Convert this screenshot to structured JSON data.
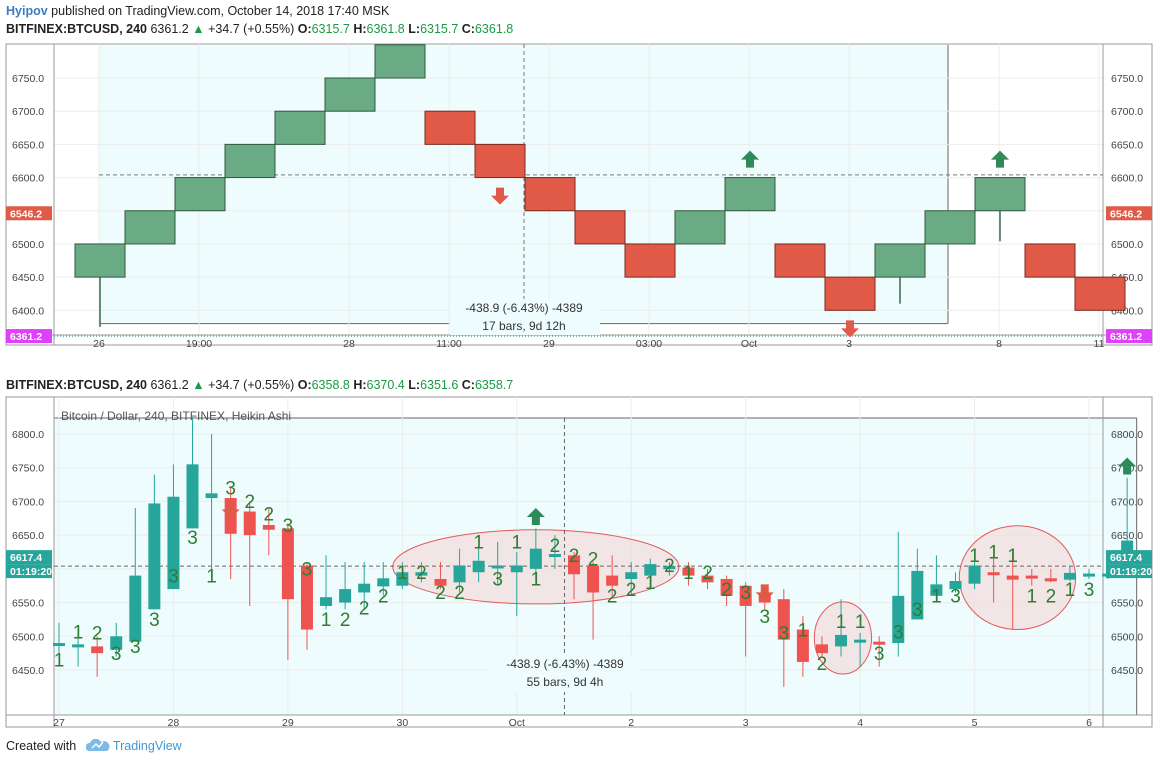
{
  "published": {
    "author": "Hyipov",
    "text": "published on TradingView.com, October 14, 2018 17:40 MSK"
  },
  "top_header": {
    "symbol": "BITFINEX:BTCUSD, 240",
    "last": "6361.2",
    "change": "+34.7 (+0.55%)",
    "o_label": "O:",
    "o": "6315.7",
    "h_label": "H:",
    "h": "6361.8",
    "l_label": "L:",
    "l": "6315.7",
    "c_label": "C:",
    "c": "6361.8"
  },
  "bottom_header": {
    "symbol": "BITFINEX:BTCUSD, 240",
    "last": "6361.2",
    "change": "+34.7 (+0.55%)",
    "o_label": "O:",
    "o": "6358.8",
    "h_label": "H:",
    "h": "6370.4",
    "l_label": "L:",
    "l": "6351.6",
    "c_label": "C:",
    "c": "6358.7"
  },
  "footer": {
    "created_with": "Created with",
    "brand": "TradingView"
  },
  "colors": {
    "up_box": "#6aaa84",
    "down_box": "#e05a47",
    "ha_up": "#26a69a",
    "ha_down": "#ef5350",
    "pink": "#e040fb",
    "ellipse_fill": "#f2dede",
    "ellipse_stroke": "#e05a5a",
    "label_green": "#2e7d32",
    "shade": "#eefcfd"
  },
  "chart_data": [
    {
      "type": "renko",
      "box_size": 50,
      "y_ticks": [
        "6750.0",
        "6700.0",
        "6650.0",
        "6600.0",
        "6550.0",
        "6500.0",
        "6450.0",
        "6400.0"
      ],
      "ylim": [
        6355,
        6815
      ],
      "x_ticks": [
        "26",
        "19:00",
        "28",
        "11:00",
        "29",
        "03:00",
        "Oct",
        "3",
        "8",
        "11"
      ],
      "bricks": [
        {
          "dir": "up",
          "open": 6450,
          "close": 6500,
          "wick": 6375
        },
        {
          "dir": "up",
          "open": 6500,
          "close": 6550
        },
        {
          "dir": "up",
          "open": 6550,
          "close": 6600
        },
        {
          "dir": "up",
          "open": 6600,
          "close": 6650
        },
        {
          "dir": "up",
          "open": 6650,
          "close": 6700
        },
        {
          "dir": "up",
          "open": 6700,
          "close": 6750
        },
        {
          "dir": "up",
          "open": 6750,
          "close": 6800
        },
        {
          "dir": "down",
          "open": 6700,
          "close": 6650
        },
        {
          "dir": "down",
          "open": 6650,
          "close": 6600
        },
        {
          "dir": "down",
          "open": 6600,
          "close": 6550
        },
        {
          "dir": "down",
          "open": 6550,
          "close": 6500
        },
        {
          "dir": "down",
          "open": 6500,
          "close": 6450
        },
        {
          "dir": "up",
          "open": 6500,
          "close": 6550
        },
        {
          "dir": "up",
          "open": 6550,
          "close": 6600
        },
        {
          "dir": "down",
          "open": 6500,
          "close": 6450
        },
        {
          "dir": "down",
          "open": 6450,
          "close": 6400
        },
        {
          "dir": "up",
          "open": 6450,
          "close": 6500,
          "wick": 6410
        },
        {
          "dir": "up",
          "open": 6500,
          "close": 6550
        },
        {
          "dir": "up",
          "open": 6550,
          "close": 6600,
          "wick": 6504
        },
        {
          "dir": "down",
          "open": 6500,
          "close": 6450
        },
        {
          "dir": "down",
          "open": 6450,
          "close": 6400
        }
      ],
      "signals": [
        {
          "dir": "down",
          "brick": 8
        },
        {
          "dir": "up",
          "brick": 13
        },
        {
          "dir": "down",
          "brick": 15
        },
        {
          "dir": "up",
          "brick": 18
        }
      ],
      "range_start_brick": 0,
      "range_end_brick": 17,
      "price_tag": "6546.2",
      "price_tag_value": 6546.2,
      "pink_tag": "6361.2",
      "pink_tag_value": 6361.2,
      "hline_value": 6604,
      "measure": {
        "line1": "-438.9 (-6.43%) -4389",
        "line2": "17 bars, 9d 12h"
      }
    },
    {
      "type": "candlestick",
      "title": "Bitcoin / Dollar, 240, BITFINEX, Heikin Ashi",
      "y_ticks": [
        "6800.0",
        "6750.0",
        "6700.0",
        "6650.0",
        "6600.0",
        "6550.0",
        "6500.0",
        "6450.0"
      ],
      "ylim": [
        6406,
        6827
      ],
      "x_ticks": [
        "27",
        "28",
        "29",
        "30",
        "Oct",
        "2",
        "3",
        "4",
        "5",
        "6"
      ],
      "x_tick_pos": [
        0,
        6,
        12,
        18,
        24,
        30,
        36,
        42,
        48,
        54
      ],
      "candles": [
        {
          "o": 6490,
          "c": 6490,
          "h": 6520,
          "l": 6470
        },
        {
          "o": 6485,
          "c": 6488,
          "h": 6510,
          "l": 6455
        },
        {
          "o": 6485,
          "c": 6475,
          "h": 6500,
          "l": 6440
        },
        {
          "o": 6480,
          "c": 6500,
          "h": 6520,
          "l": 6470
        },
        {
          "o": 6492,
          "c": 6590,
          "h": 6690,
          "l": 6492
        },
        {
          "o": 6540,
          "c": 6697,
          "h": 6740,
          "l": 6540
        },
        {
          "o": 6570,
          "c": 6707,
          "h": 6755,
          "l": 6570
        },
        {
          "o": 6660,
          "c": 6755,
          "h": 6825,
          "l": 6660
        },
        {
          "o": 6705,
          "c": 6712,
          "h": 6800,
          "l": 6600
        },
        {
          "o": 6705,
          "c": 6652,
          "h": 6720,
          "l": 6585
        },
        {
          "o": 6685,
          "c": 6650,
          "h": 6700,
          "l": 6545
        },
        {
          "o": 6665,
          "c": 6658,
          "h": 6690,
          "l": 6620
        },
        {
          "o": 6660,
          "c": 6555,
          "h": 6665,
          "l": 6465
        },
        {
          "o": 6605,
          "c": 6510,
          "h": 6610,
          "l": 6480
        },
        {
          "o": 6545,
          "c": 6558,
          "h": 6620,
          "l": 6540
        },
        {
          "o": 6550,
          "c": 6570,
          "h": 6610,
          "l": 6540
        },
        {
          "o": 6565,
          "c": 6578,
          "h": 6610,
          "l": 6540
        },
        {
          "o": 6574,
          "c": 6586,
          "h": 6610,
          "l": 6560
        },
        {
          "o": 6575,
          "c": 6595,
          "h": 6610,
          "l": 6570
        },
        {
          "o": 6590,
          "c": 6595,
          "h": 6610,
          "l": 6580
        },
        {
          "o": 6585,
          "c": 6575,
          "h": 6610,
          "l": 6570
        },
        {
          "o": 6580,
          "c": 6605,
          "h": 6630,
          "l": 6565
        },
        {
          "o": 6595,
          "c": 6612,
          "h": 6630,
          "l": 6580
        },
        {
          "o": 6605,
          "c": 6605,
          "h": 6640,
          "l": 6575
        },
        {
          "o": 6595,
          "c": 6605,
          "h": 6625,
          "l": 6530
        },
        {
          "o": 6600,
          "c": 6630,
          "h": 6660,
          "l": 6580
        },
        {
          "o": 6620,
          "c": 6622,
          "h": 6650,
          "l": 6600
        },
        {
          "o": 6620,
          "c": 6592,
          "h": 6625,
          "l": 6555
        },
        {
          "o": 6605,
          "c": 6565,
          "h": 6610,
          "l": 6495
        },
        {
          "o": 6590,
          "c": 6575,
          "h": 6620,
          "l": 6560
        },
        {
          "o": 6585,
          "c": 6595,
          "h": 6610,
          "l": 6560
        },
        {
          "o": 6590,
          "c": 6607,
          "h": 6615,
          "l": 6570
        },
        {
          "o": 6602,
          "c": 6604,
          "h": 6610,
          "l": 6590
        },
        {
          "o": 6602,
          "c": 6590,
          "h": 6610,
          "l": 6575
        },
        {
          "o": 6590,
          "c": 6580,
          "h": 6600,
          "l": 6570
        },
        {
          "o": 6585,
          "c": 6560,
          "h": 6590,
          "l": 6545
        },
        {
          "o": 6575,
          "c": 6545,
          "h": 6580,
          "l": 6470
        },
        {
          "o": 6565,
          "c": 6550,
          "h": 6575,
          "l": 6540
        },
        {
          "o": 6555,
          "c": 6495,
          "h": 6570,
          "l": 6425
        },
        {
          "o": 6510,
          "c": 6462,
          "h": 6530,
          "l": 6440
        },
        {
          "o": 6488,
          "c": 6475,
          "h": 6500,
          "l": 6470
        },
        {
          "o": 6485,
          "c": 6502,
          "h": 6555,
          "l": 6470
        },
        {
          "o": 6494,
          "c": 6495,
          "h": 6505,
          "l": 6455
        },
        {
          "o": 6492,
          "c": 6490,
          "h": 6500,
          "l": 6455
        },
        {
          "o": 6490,
          "c": 6560,
          "h": 6655,
          "l": 6470
        },
        {
          "o": 6525,
          "c": 6597,
          "h": 6630,
          "l": 6525
        },
        {
          "o": 6560,
          "c": 6577,
          "h": 6620,
          "l": 6550
        },
        {
          "o": 6570,
          "c": 6582,
          "h": 6595,
          "l": 6565
        },
        {
          "o": 6578,
          "c": 6605,
          "h": 6615,
          "l": 6570
        },
        {
          "o": 6595,
          "c": 6594,
          "h": 6615,
          "l": 6550
        },
        {
          "o": 6590,
          "c": 6584,
          "h": 6625,
          "l": 6510
        },
        {
          "o": 6590,
          "c": 6588,
          "h": 6600,
          "l": 6575
        },
        {
          "o": 6586,
          "c": 6584,
          "h": 6600,
          "l": 6580
        },
        {
          "o": 6584,
          "c": 6594,
          "h": 6605,
          "l": 6582
        },
        {
          "o": 6590,
          "c": 6593,
          "h": 6600,
          "l": 6585
        },
        {
          "o": 6590,
          "c": 6593,
          "h": 6600,
          "l": 6585
        },
        {
          "o": 6591,
          "c": 6642,
          "h": 6735,
          "l": 6590
        },
        {
          "o": 6617,
          "c": 6620,
          "h": 6625,
          "l": 6615
        }
      ],
      "labels": [
        {
          "text": "1",
          "i": 0,
          "v": 6455
        },
        {
          "text": "1",
          "i": 1,
          "v": 6497
        },
        {
          "text": "2",
          "i": 2,
          "v": 6495
        },
        {
          "text": "3",
          "i": 3,
          "v": 6465
        },
        {
          "text": "3",
          "i": 4,
          "v": 6475
        },
        {
          "text": "3",
          "i": 5,
          "v": 6515
        },
        {
          "text": "3",
          "i": 6,
          "v": 6580
        },
        {
          "text": "3",
          "i": 7,
          "v": 6637
        },
        {
          "text": "1",
          "i": 8,
          "v": 6580
        },
        {
          "text": "3",
          "i": 9,
          "v": 6710
        },
        {
          "text": "2",
          "i": 10,
          "v": 6690
        },
        {
          "text": "2",
          "i": 11,
          "v": 6672
        },
        {
          "text": "3",
          "i": 12,
          "v": 6655
        },
        {
          "text": "3",
          "i": 13,
          "v": 6590
        },
        {
          "text": "1",
          "i": 14,
          "v": 6515
        },
        {
          "text": "2",
          "i": 15,
          "v": 6515
        },
        {
          "text": "2",
          "i": 16,
          "v": 6532
        },
        {
          "text": "2",
          "i": 17,
          "v": 6550
        },
        {
          "text": "1",
          "i": 18,
          "v": 6585
        },
        {
          "text": "2",
          "i": 19,
          "v": 6585
        },
        {
          "text": "2",
          "i": 20,
          "v": 6555
        },
        {
          "text": "2",
          "i": 21,
          "v": 6555
        },
        {
          "text": "1",
          "i": 22,
          "v": 6630
        },
        {
          "text": "3",
          "i": 23,
          "v": 6575
        },
        {
          "text": "1",
          "i": 24,
          "v": 6630
        },
        {
          "text": "1",
          "i": 25,
          "v": 6575
        },
        {
          "text": "2",
          "i": 26,
          "v": 6625
        },
        {
          "text": "2",
          "i": 27,
          "v": 6610
        },
        {
          "text": "2",
          "i": 28,
          "v": 6605
        },
        {
          "text": "2",
          "i": 29,
          "v": 6550
        },
        {
          "text": "2",
          "i": 30,
          "v": 6560
        },
        {
          "text": "1",
          "i": 31,
          "v": 6570
        },
        {
          "text": "2",
          "i": 32,
          "v": 6595
        },
        {
          "text": "1",
          "i": 33,
          "v": 6585
        },
        {
          "text": "2",
          "i": 34,
          "v": 6585
        },
        {
          "text": "2",
          "i": 35,
          "v": 6560
        },
        {
          "text": "3",
          "i": 36,
          "v": 6555
        },
        {
          "text": "3",
          "i": 37,
          "v": 6520
        },
        {
          "text": "3",
          "i": 38,
          "v": 6495
        },
        {
          "text": "1",
          "i": 39,
          "v": 6500
        },
        {
          "text": "2",
          "i": 40,
          "v": 6450
        },
        {
          "text": "1",
          "i": 41,
          "v": 6512
        },
        {
          "text": "1",
          "i": 42,
          "v": 6512
        },
        {
          "text": "3",
          "i": 43,
          "v": 6465
        },
        {
          "text": "3",
          "i": 44,
          "v": 6497
        },
        {
          "text": "3",
          "i": 45,
          "v": 6530
        },
        {
          "text": "1",
          "i": 46,
          "v": 6550
        },
        {
          "text": "3",
          "i": 47,
          "v": 6550
        },
        {
          "text": "1",
          "i": 48,
          "v": 6610
        },
        {
          "text": "1",
          "i": 49,
          "v": 6615
        },
        {
          "text": "1",
          "i": 50,
          "v": 6610
        },
        {
          "text": "1",
          "i": 51,
          "v": 6550
        },
        {
          "text": "2",
          "i": 52,
          "v": 6550
        },
        {
          "text": "1",
          "i": 53,
          "v": 6560
        },
        {
          "text": "3",
          "i": 54,
          "v": 6560
        }
      ],
      "ellipses": [
        {
          "i_from": 17.5,
          "i_to": 32.5,
          "v_from": 6548,
          "v_to": 6658
        },
        {
          "i_from": 39.6,
          "i_to": 42.6,
          "v_from": 6444,
          "v_to": 6551
        },
        {
          "i_from": 47.2,
          "i_to": 53.3,
          "v_from": 6510,
          "v_to": 6664
        }
      ],
      "signals": [
        {
          "dir": "down",
          "i": 9,
          "v": 6700
        },
        {
          "dir": "up",
          "i": 25,
          "v": 6665
        },
        {
          "dir": "down",
          "i": 37,
          "v": 6577
        },
        {
          "dir": "up",
          "i": 56,
          "v": 6740
        }
      ],
      "range_start_i": -0.2,
      "range_end_i": 56.5,
      "crosshair_i": 26.5,
      "hline_value": 6604,
      "price_tag": "6617.4",
      "price_tag_value": 6617.4,
      "time_tag": "01:19:20",
      "measure": {
        "line1": "-438.9 (-6.43%) -4389",
        "line2": "55 bars, 9d 4h"
      }
    }
  ]
}
